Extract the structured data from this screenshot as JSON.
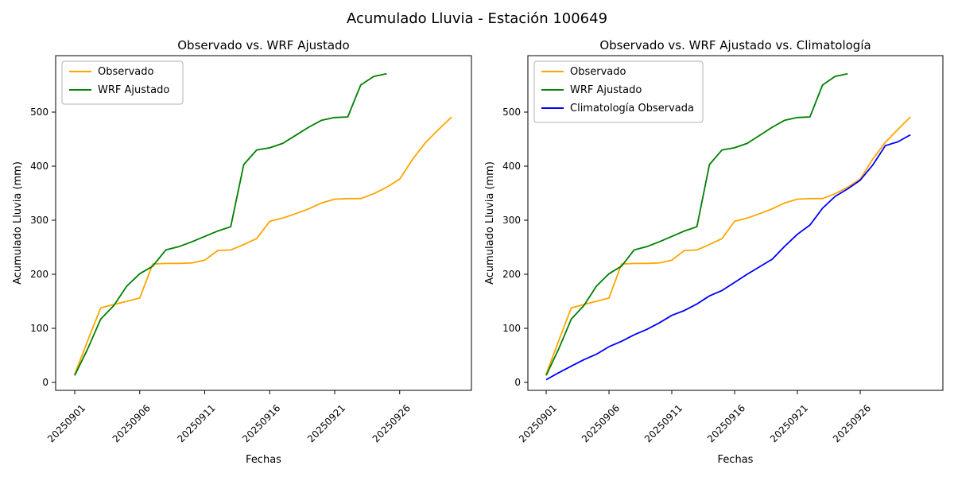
{
  "figure": {
    "suptitle": "Acumulado Lluvia - Estación 100649",
    "background": "#ffffff"
  },
  "colors": {
    "observado": "#FFA500",
    "wrf_ajustado": "#008000",
    "climatologia": "#0000FF",
    "axes": "#000000",
    "legend_border": "#b3b3b3"
  },
  "chart_data": [
    {
      "type": "line",
      "title": "Observado vs. WRF Ajustado",
      "xlabel": "Fechas",
      "ylabel": "Acumulado Lluvia (mm)",
      "grid": false,
      "ylim": [
        0,
        600
      ],
      "yticks": [
        0,
        100,
        200,
        300,
        400,
        500
      ],
      "xtick_labels": [
        "20250901",
        "20250906",
        "20250911",
        "20250916",
        "20250921",
        "20250926"
      ],
      "xtick_rotation": 45,
      "x": [
        "20250901",
        "20250902",
        "20250903",
        "20250904",
        "20250905",
        "20250906",
        "20250907",
        "20250908",
        "20250909",
        "20250910",
        "20250911",
        "20250912",
        "20250913",
        "20250914",
        "20250915",
        "20250916",
        "20250917",
        "20250918",
        "20250919",
        "20250920",
        "20250921",
        "20250922",
        "20250923",
        "20250924",
        "20250925",
        "20250926",
        "20250927",
        "20250928",
        "20250929",
        "20250930"
      ],
      "legend": {
        "position": "upper left",
        "entries": [
          "Observado",
          "WRF Ajustado"
        ]
      },
      "series": [
        {
          "name": "Observado",
          "color": "#FFA500",
          "values": [
            15,
            77,
            138,
            144,
            150,
            156,
            219,
            220,
            220,
            221,
            226,
            244,
            245,
            255,
            266,
            298,
            304,
            312,
            321,
            332,
            339,
            340,
            340,
            349,
            361,
            376,
            413,
            444,
            468,
            491
          ]
        },
        {
          "name": "WRF Ajustado",
          "color": "#008000",
          "values": [
            13,
            62,
            117,
            142,
            178,
            201,
            215,
            245,
            251,
            260,
            270,
            280,
            288,
            403,
            430,
            434,
            442,
            457,
            472,
            485,
            490,
            491,
            550,
            566,
            571
          ]
        }
      ]
    },
    {
      "type": "line",
      "title": "Observado vs. WRF Ajustado vs. Climatología",
      "xlabel": "Fechas",
      "ylabel": "Acumulado Lluvia (mm)",
      "grid": false,
      "ylim": [
        0,
        600
      ],
      "yticks": [
        0,
        100,
        200,
        300,
        400,
        500
      ],
      "xtick_labels": [
        "20250901",
        "20250906",
        "20250911",
        "20250916",
        "20250921",
        "20250926"
      ],
      "xtick_rotation": 45,
      "x": [
        "20250901",
        "20250902",
        "20250903",
        "20250904",
        "20250905",
        "20250906",
        "20250907",
        "20250908",
        "20250909",
        "20250910",
        "20250911",
        "20250912",
        "20250913",
        "20250914",
        "20250915",
        "20250916",
        "20250917",
        "20250918",
        "20250919",
        "20250920",
        "20250921",
        "20250922",
        "20250923",
        "20250924",
        "20250925",
        "20250926",
        "20250927",
        "20250928",
        "20250929",
        "20250930"
      ],
      "legend": {
        "position": "upper left",
        "entries": [
          "Observado",
          "WRF Ajustado",
          "Climatología Observada"
        ]
      },
      "series": [
        {
          "name": "Observado",
          "color": "#FFA500",
          "values": [
            15,
            77,
            138,
            144,
            150,
            156,
            219,
            220,
            220,
            221,
            226,
            244,
            245,
            255,
            266,
            298,
            304,
            312,
            321,
            332,
            339,
            340,
            340,
            349,
            361,
            376,
            413,
            444,
            468,
            491
          ]
        },
        {
          "name": "WRF Ajustado",
          "color": "#008000",
          "values": [
            13,
            62,
            117,
            142,
            178,
            201,
            215,
            245,
            251,
            260,
            270,
            280,
            288,
            403,
            430,
            434,
            442,
            457,
            472,
            485,
            490,
            491,
            550,
            566,
            571
          ]
        },
        {
          "name": "Climatología Observada",
          "color": "#0000FF",
          "values": [
            5,
            18,
            30,
            42,
            52,
            66,
            76,
            88,
            98,
            110,
            124,
            133,
            145,
            160,
            170,
            185,
            200,
            214,
            228,
            252,
            274,
            291,
            322,
            344,
            358,
            374,
            402,
            438,
            445,
            458
          ]
        }
      ]
    }
  ]
}
